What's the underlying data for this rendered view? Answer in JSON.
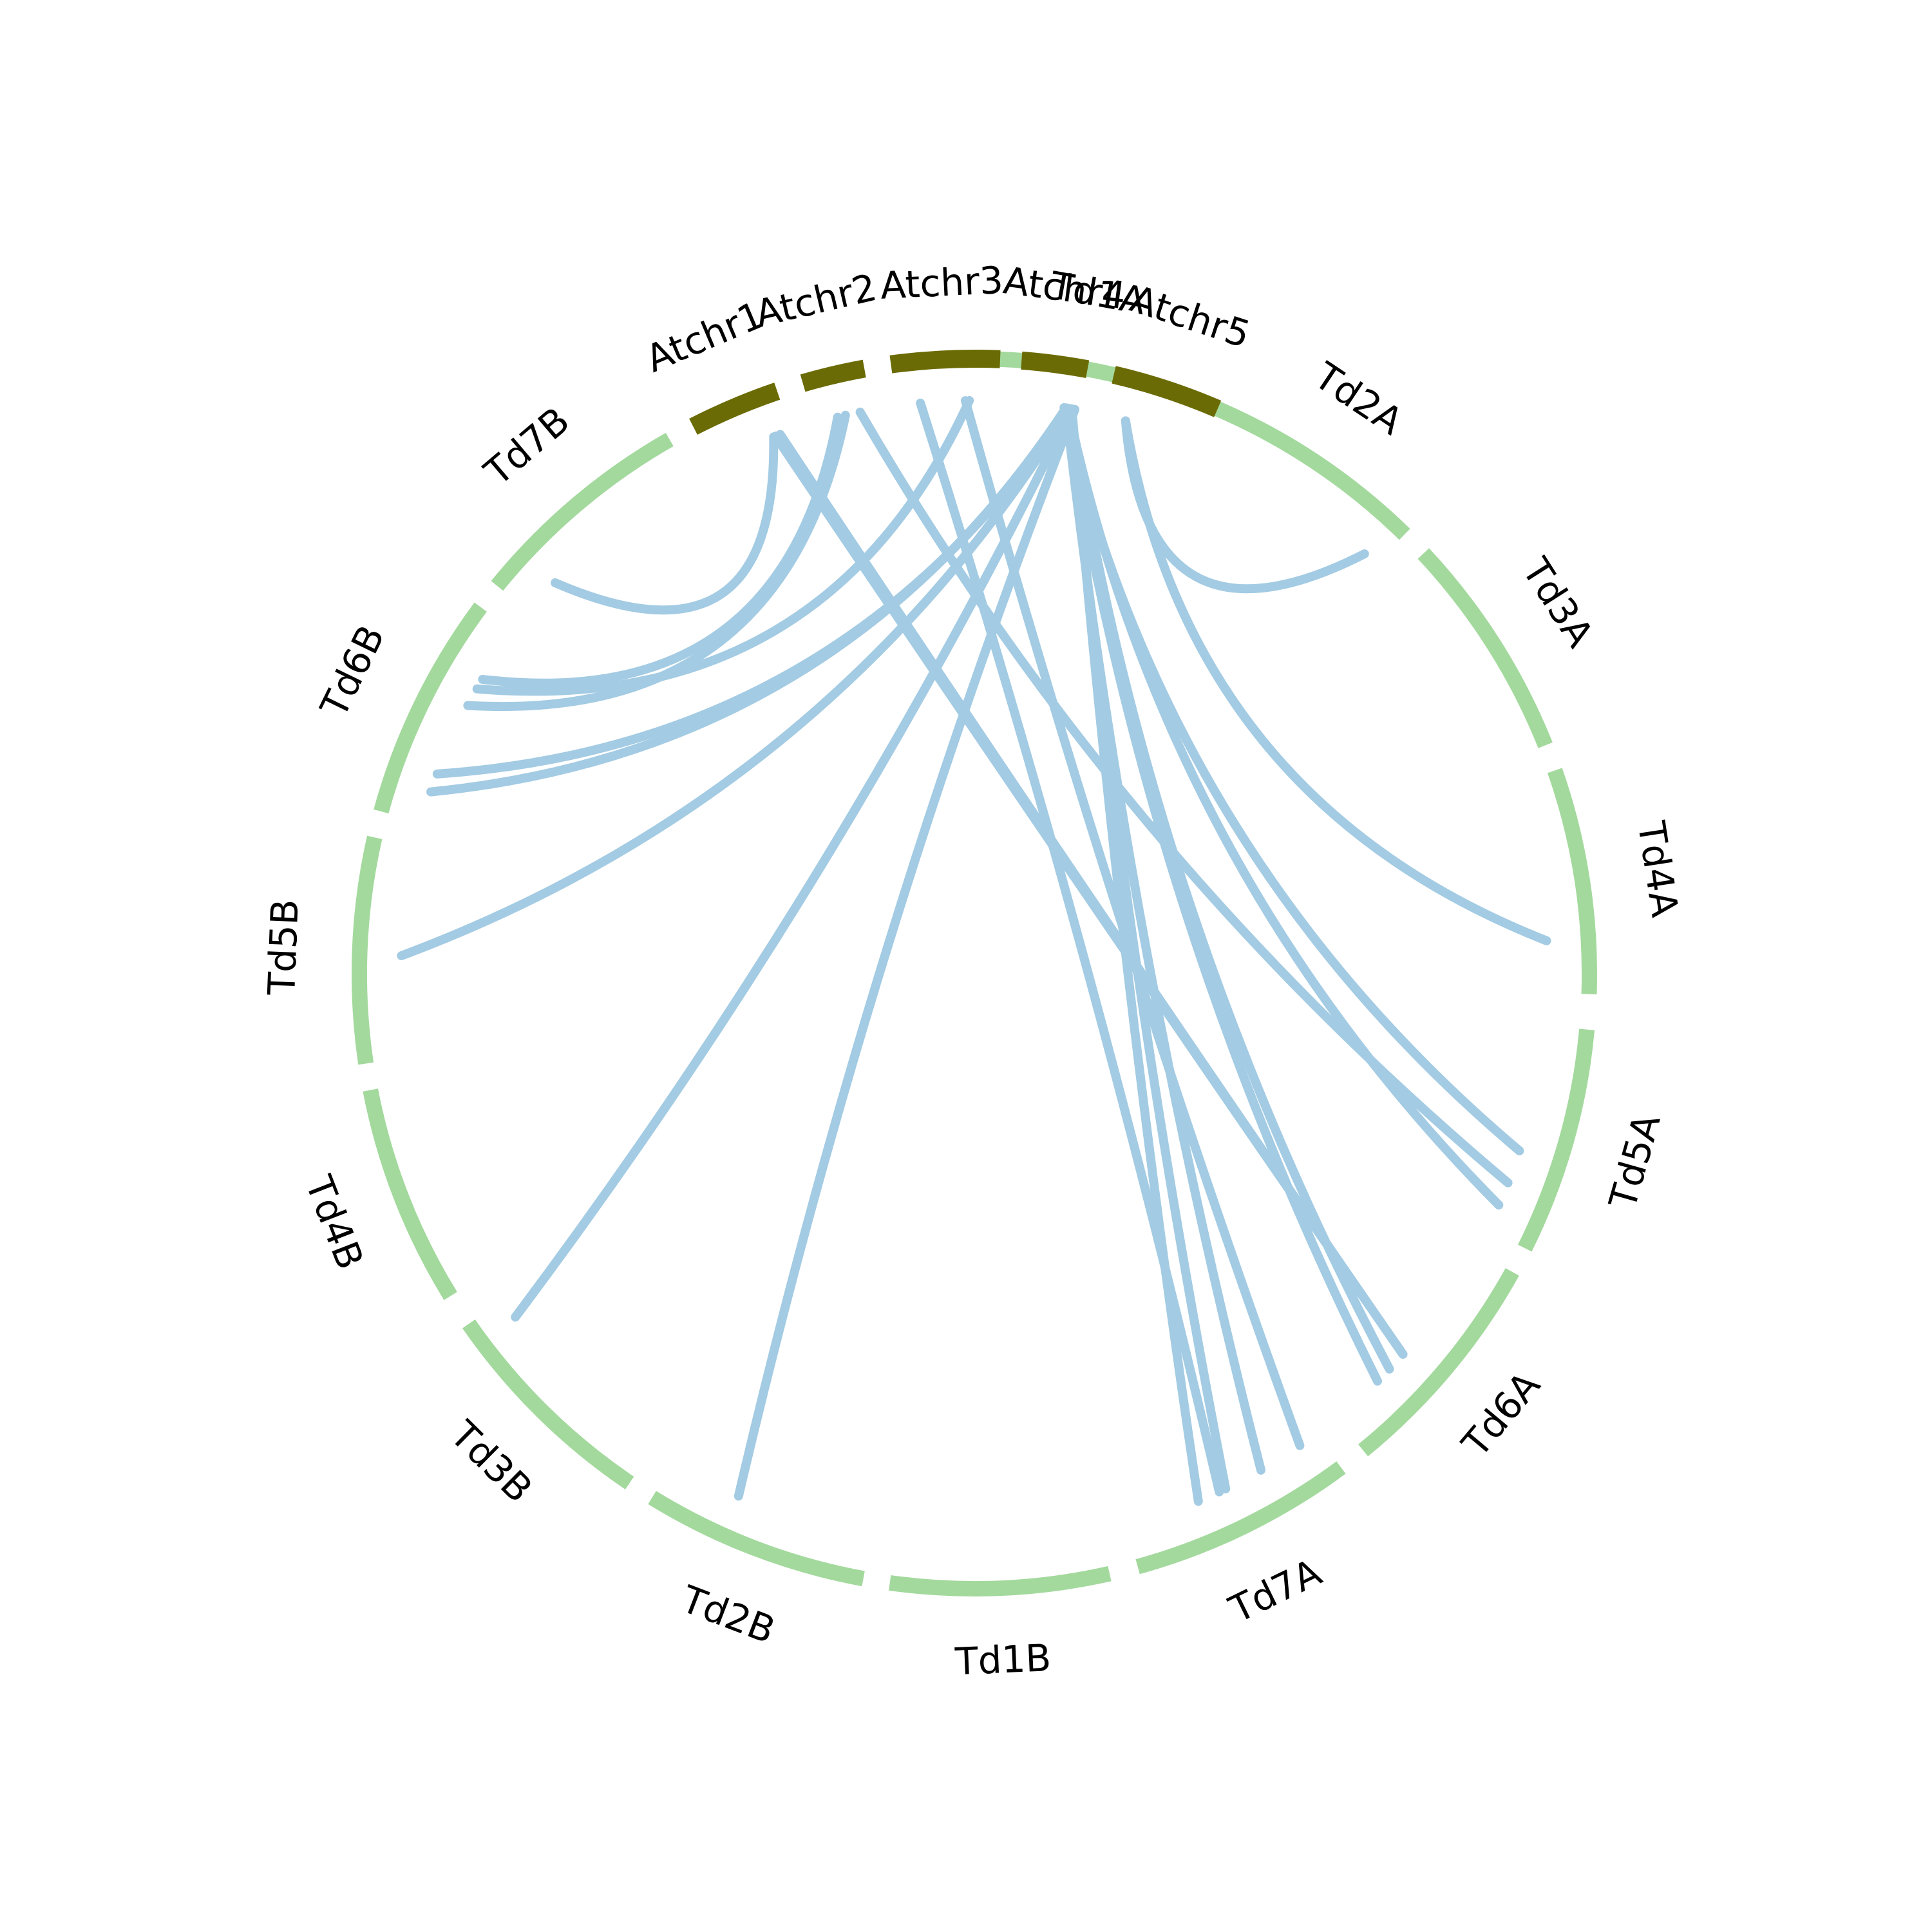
{
  "diagram": {
    "type": "circos-synteny",
    "colors": {
      "atchr": "#6b6b05",
      "td": "#a3d99d",
      "link": "#a3cbe3",
      "label": "#000000"
    },
    "chromosomes": [
      {
        "name": "Td1A",
        "group": "td",
        "start": 0,
        "end": 20.6
      },
      {
        "name": "Td2A",
        "group": "td",
        "start": 23.1,
        "end": 44.4
      },
      {
        "name": "Td3A",
        "group": "td",
        "start": 46.9,
        "end": 68.2
      },
      {
        "name": "Td4A",
        "group": "td",
        "start": 70.7,
        "end": 91.9
      },
      {
        "name": "Td5A",
        "group": "td",
        "start": 95.2,
        "end": 116.5
      },
      {
        "name": "Td6A",
        "group": "td",
        "start": 119.0,
        "end": 140.8
      },
      {
        "name": "Td7A",
        "group": "td",
        "start": 143.4,
        "end": 164.6
      },
      {
        "name": "Td1B",
        "group": "td",
        "start": 167.3,
        "end": 187.9
      },
      {
        "name": "Td2B",
        "group": "td",
        "start": 190.4,
        "end": 211.6
      },
      {
        "name": "Td3B",
        "group": "td",
        "start": 214.1,
        "end": 235.3
      },
      {
        "name": "Td4B",
        "group": "td",
        "start": 238.4,
        "end": 259.1
      },
      {
        "name": "Td5B",
        "group": "td",
        "start": 261.6,
        "end": 282.8
      },
      {
        "name": "Td6B",
        "group": "td",
        "start": 285.3,
        "end": 306.6
      },
      {
        "name": "Td7B",
        "group": "td",
        "start": 309.1,
        "end": 330.3
      },
      {
        "name": "Atchr1",
        "group": "atchr",
        "start": 332.8,
        "end": 341.3
      },
      {
        "name": "Atchr2",
        "group": "atchr",
        "start": 343.8,
        "end": 349.7
      },
      {
        "name": "Atchr3",
        "group": "atchr",
        "start": 352.2,
        "end": 362.4
      },
      {
        "name": "Atchr4",
        "group": "atchr",
        "start": 364.4,
        "end": 370.6
      },
      {
        "name": "Atchr5",
        "group": "atchr",
        "start": 373.1,
        "end": 383.3
      }
    ],
    "links": [
      [
        375.3,
        42.9
      ],
      [
        375.3,
        86.7
      ],
      [
        369.0,
        108.0
      ],
      [
        369.4,
        113.8
      ],
      [
        369.6,
        133.6
      ],
      [
        369.2,
        135.3
      ],
      [
        369.2,
        150.0
      ],
      [
        369.6,
        154.0
      ],
      [
        369.8,
        157.0
      ],
      [
        370.1,
        204.3
      ],
      [
        369.8,
        233.2
      ],
      [
        369.6,
        271.8
      ],
      [
        369.2,
        288.5
      ],
      [
        369.4,
        290.4
      ],
      [
        359.5,
        299.8
      ],
      [
        359.1,
        145.4
      ],
      [
        354.6,
        154.7
      ],
      [
        348.5,
        111.4
      ],
      [
        347.0,
        297.9
      ],
      [
        346.2,
        300.9
      ],
      [
        340.2,
        131.6
      ],
      [
        339.5,
        313.0
      ],
      [
        339.7,
        131.6
      ]
    ]
  }
}
